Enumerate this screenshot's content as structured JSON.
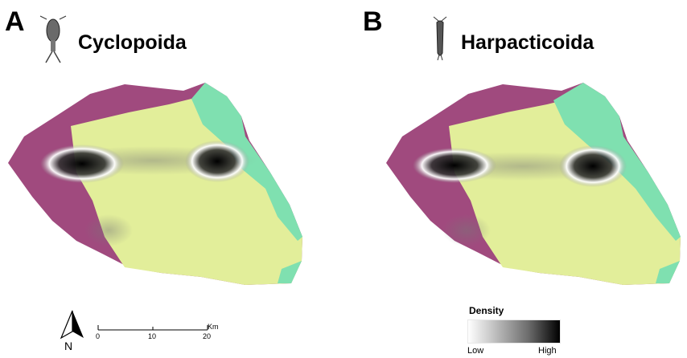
{
  "panels": [
    {
      "letter": "A",
      "title": "Cyclopoida"
    },
    {
      "letter": "B",
      "title": "Harpacticoida"
    }
  ],
  "scale_bar": {
    "ticks": [
      "0",
      "10",
      "20"
    ],
    "unit": "Km"
  },
  "north_arrow": {
    "label": "N"
  },
  "legend": {
    "title": "Density",
    "low": "Low",
    "high": "High"
  },
  "colors": {
    "purple_zone": "#a04a7e",
    "yellow_zone": "#e2ee9a",
    "green_zone": "#7fe0b0"
  },
  "icons": [
    "cyclopoid-copepod-icon",
    "harpacticoid-copepod-icon",
    "north-arrow-icon"
  ]
}
